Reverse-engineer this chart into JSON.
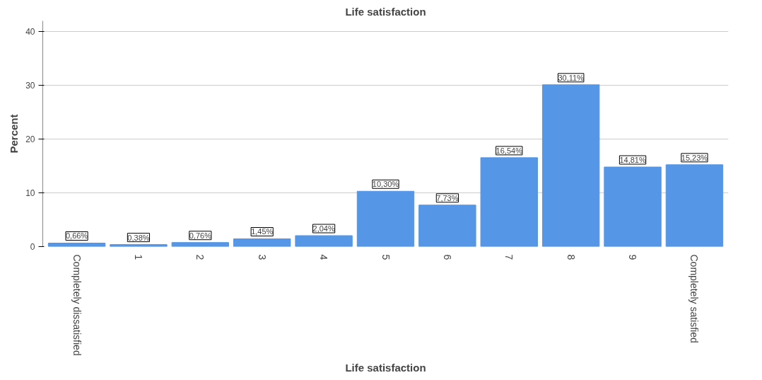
{
  "chart_data": {
    "type": "bar",
    "title": "Life satisfaction",
    "xlabel": "Life satisfaction",
    "ylabel": "Percent",
    "categories": [
      "Completely dissatisfied",
      "1",
      "2",
      "3",
      "4",
      "5",
      "6",
      "7",
      "8",
      "9",
      "Completely satisfied"
    ],
    "values": [
      0.66,
      0.38,
      0.76,
      1.45,
      2.04,
      10.3,
      7.73,
      16.54,
      30.11,
      14.81,
      15.23
    ],
    "value_labels": [
      "0,66%",
      "0,38%",
      "0,76%",
      "1,45%",
      "2,04%",
      "10,30%",
      "7,73%",
      "16,54%",
      "30,11%",
      "14,81%",
      "15,23%"
    ],
    "color": "#5596e6",
    "ylim": [
      0,
      42
    ],
    "yticks": [
      0,
      10,
      20,
      30,
      40
    ],
    "grid": "y"
  }
}
